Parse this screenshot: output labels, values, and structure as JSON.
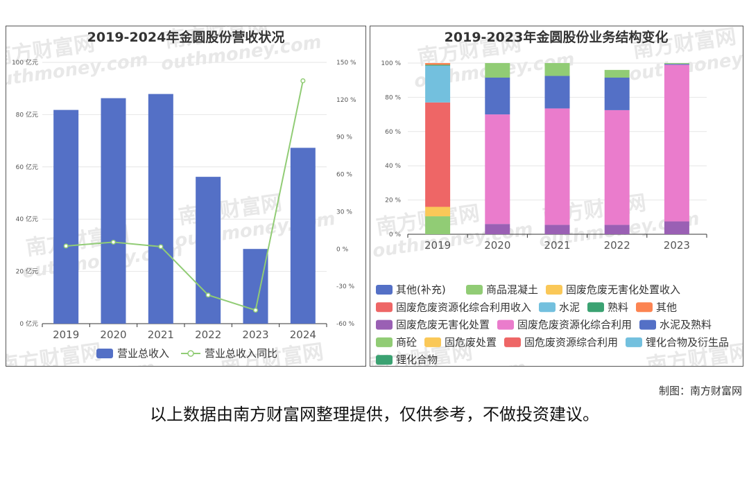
{
  "credit": "制图：南方财富网",
  "disclaimer": "以上数据由南方财富网整理提供，仅供参考，不做投资建议。",
  "watermark": {
    "cn": "南方财富网",
    "en": "outhmoney.com"
  },
  "colors": {
    "bar": "#5470c6",
    "line": "#91cc75",
    "grid": "#e6e6e6",
    "axis": "#333333"
  },
  "chart_data": [
    {
      "type": "bar",
      "title": "2019-2024年金圆股份营收状况",
      "categories": [
        "2019",
        "2020",
        "2021",
        "2022",
        "2023",
        "2024"
      ],
      "left_ticks": [
        "0 亿元",
        "20 亿元",
        "40 亿元",
        "60 亿元",
        "80 亿元",
        "100 亿元"
      ],
      "right_ticks": [
        "-60 %",
        "-30 %",
        "0 %",
        "30 %",
        "60 %",
        "90 %",
        "120 %",
        "150 %"
      ],
      "ylim": [
        0,
        100
      ],
      "y2lim": [
        -60,
        150
      ],
      "series": [
        {
          "name": "营业总收入",
          "type": "bar",
          "values": [
            81.8,
            86.3,
            87.9,
            56.2,
            28.6,
            67.3
          ]
        },
        {
          "name": "营业总收入同比",
          "type": "line",
          "axis": "right",
          "values": [
            2.4,
            5.5,
            1.9,
            -37.0,
            -49.2,
            135.2
          ]
        }
      ],
      "legend": "bottom"
    },
    {
      "type": "bar",
      "stacked": true,
      "title": "2019-2023年金圆股份业务结构变化",
      "categories": [
        "2019",
        "2020",
        "2021",
        "2022",
        "2023"
      ],
      "ticks": [
        "0 %",
        "20 %",
        "40 %",
        "60 %",
        "80 %",
        "100 %"
      ],
      "ylim": [
        0,
        100
      ],
      "series": [
        {
          "name": "其他(补充)",
          "color": "#5470c6",
          "values": [
            0,
            0,
            0,
            0,
            0
          ]
        },
        {
          "name": "商品混凝土",
          "color": "#91cc75",
          "values": [
            10.5,
            0,
            0,
            0,
            0
          ]
        },
        {
          "name": "固废危废无害化处置收入",
          "color": "#fac858",
          "values": [
            5.5,
            0,
            0,
            0,
            0
          ]
        },
        {
          "name": "固废危废资源化综合利用收入",
          "color": "#ee6666",
          "values": [
            61.0,
            0,
            0,
            0,
            0
          ]
        },
        {
          "name": "水泥",
          "color": "#73c0de",
          "values": [
            21.5,
            0,
            0,
            0,
            0
          ]
        },
        {
          "name": "熟料",
          "color": "#3ba272",
          "values": [
            0.5,
            0,
            0,
            0,
            0
          ]
        },
        {
          "name": "其他",
          "color": "#fc8452",
          "values": [
            1.0,
            0,
            0,
            0,
            0
          ]
        },
        {
          "name": "固废危废无害化处置",
          "color": "#9a60b4",
          "values": [
            0,
            6.0,
            5.5,
            5.5,
            7.5
          ]
        },
        {
          "name": "固废危废资源化综合利用",
          "color": "#ea7ccc",
          "values": [
            0,
            64.0,
            68.0,
            67.0,
            91.5
          ]
        },
        {
          "name": "水泥及熟料",
          "color": "#5470c6",
          "values": [
            0,
            21.5,
            19.0,
            19.0,
            0.5
          ]
        },
        {
          "name": "商砼",
          "color": "#91cc75",
          "values": [
            0,
            8.5,
            7.5,
            4.5,
            0.5
          ]
        },
        {
          "name": "固危废处置",
          "color": "#fac858",
          "values": [
            0,
            0,
            0,
            0,
            0
          ]
        },
        {
          "name": "固危废资源综合利用",
          "color": "#ee6666",
          "values": [
            0,
            0,
            0,
            0,
            0
          ]
        },
        {
          "name": "锂化合物及衍生品",
          "color": "#73c0de",
          "values": [
            0,
            0,
            0,
            0,
            0
          ]
        },
        {
          "name": "锂化合物",
          "color": "#3ba272",
          "values": [
            0,
            0,
            0,
            0,
            0
          ]
        }
      ],
      "legend_rows": [
        [
          "其他(补充)",
          "商品混凝土",
          "固废危废无害化处置收入"
        ],
        [
          "固废危废资源化综合利用收入",
          "水泥",
          "熟料",
          "其他"
        ],
        [
          "固废危废无害化处置",
          "固废危废资源化综合利用",
          "水泥及熟料"
        ],
        [
          "商砼",
          "固危废处置",
          "固危废资源综合利用",
          "锂化合物及衍生品"
        ],
        [
          "锂化合物"
        ]
      ],
      "legend": "bottom"
    }
  ]
}
